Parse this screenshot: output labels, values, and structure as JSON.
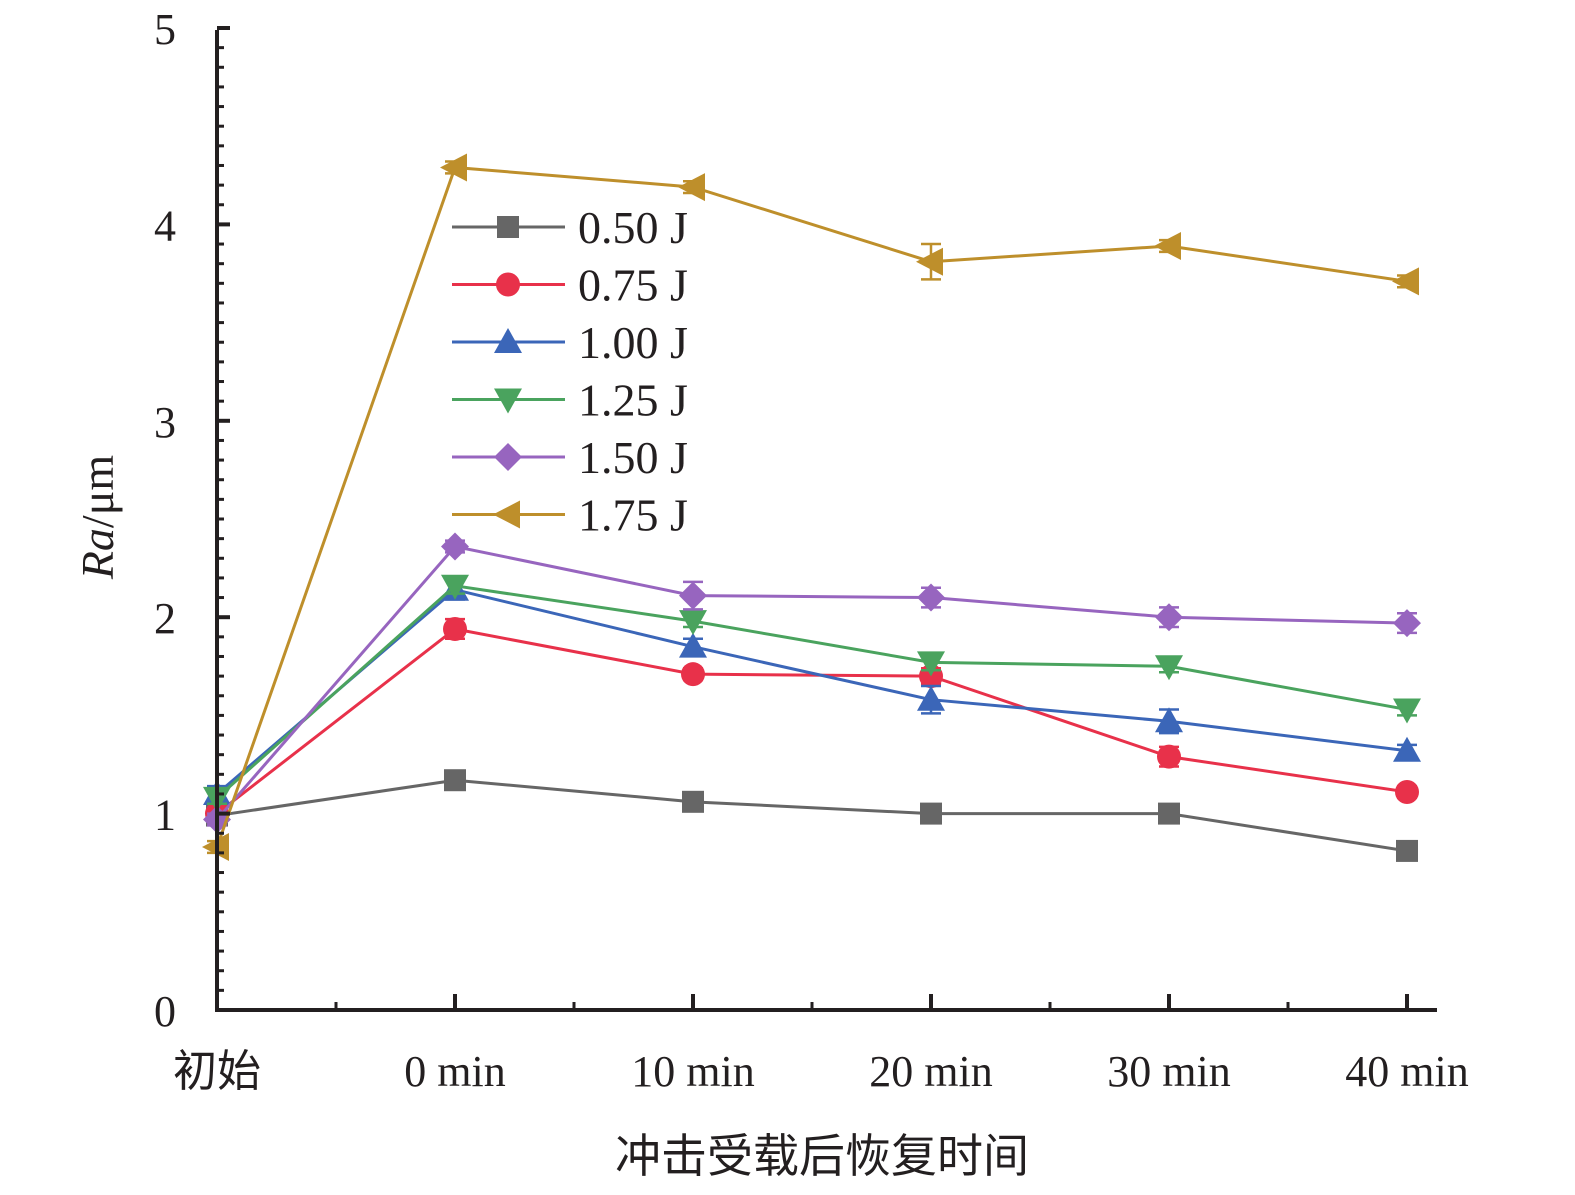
{
  "chart_data": {
    "type": "line",
    "categories": [
      "初始",
      "0 min",
      "10 min",
      "20 min",
      "30 min",
      "40 min"
    ],
    "xlabel": "冲击受载后恢复时间",
    "ylabel_italic": "Ra",
    "ylabel_unit": "/μm",
    "ylim": [
      0,
      5
    ],
    "yticks": [
      "0",
      "1",
      "2",
      "3",
      "4",
      "5"
    ],
    "grid": false,
    "legend_position": "upper-left",
    "series": [
      {
        "name": "0.50 J",
        "marker": "square",
        "color": "#666666",
        "values": [
          0.99,
          1.17,
          1.06,
          1.0,
          1.0,
          0.81
        ],
        "errors": [
          0.03,
          0.03,
          0.03,
          0.02,
          0.02,
          0.02
        ]
      },
      {
        "name": "0.75 J",
        "marker": "circle",
        "color": "#e8314a",
        "values": [
          1.0,
          1.94,
          1.71,
          1.7,
          1.29,
          1.11
        ],
        "errors": [
          0.03,
          0.05,
          0.03,
          0.04,
          0.05,
          0.03
        ]
      },
      {
        "name": "1.00 J",
        "marker": "triangle-up",
        "color": "#3b66b8",
        "values": [
          1.1,
          2.14,
          1.85,
          1.58,
          1.47,
          1.32
        ],
        "errors": [
          0.04,
          0.05,
          0.04,
          0.07,
          0.06,
          0.03
        ]
      },
      {
        "name": "1.25 J",
        "marker": "triangle-down",
        "color": "#4aa35e",
        "values": [
          1.08,
          2.16,
          1.98,
          1.77,
          1.75,
          1.53
        ],
        "errors": [
          0.03,
          0.04,
          0.03,
          0.04,
          0.03,
          0.03
        ]
      },
      {
        "name": "1.50 J",
        "marker": "diamond",
        "color": "#9765bf",
        "values": [
          0.97,
          2.36,
          2.11,
          2.1,
          2.0,
          1.97
        ],
        "errors": [
          0.03,
          0.03,
          0.07,
          0.05,
          0.05,
          0.05
        ]
      },
      {
        "name": "1.75 J",
        "marker": "triangle-left",
        "color": "#be8f2b",
        "values": [
          0.83,
          4.29,
          4.19,
          3.81,
          3.89,
          3.71
        ],
        "errors": [
          0.03,
          0.03,
          0.03,
          0.09,
          0.03,
          0.03
        ]
      }
    ]
  }
}
